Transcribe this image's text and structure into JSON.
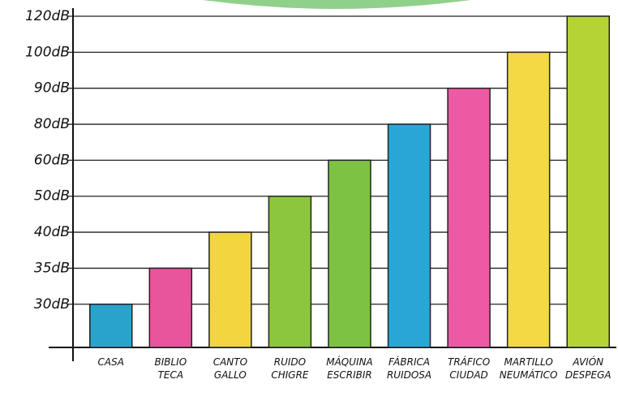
{
  "chart_data": {
    "type": "bar",
    "categories": [
      "CASA",
      "BIBLIO TECA",
      "CANTO GALLO",
      "RUIDO CHIGRE",
      "MÁQUINA ESCRIBIR",
      "FÁBRICA RUIDOSA",
      "TRÁFICO CIUDAD",
      "MARTILLO NEUMÁTICO",
      "AVIÓN DESPEGA"
    ],
    "values": [
      30,
      35,
      40,
      50,
      60,
      80,
      90,
      100,
      120
    ],
    "colors": [
      "#2aa3cc",
      "#e8559d",
      "#f2d53f",
      "#8cc63f",
      "#7dc243",
      "#2aa6d6",
      "#ec5aa3",
      "#f4d844",
      "#b6d336"
    ],
    "ylim": [
      24,
      120
    ],
    "yticks": [
      {
        "value": 30,
        "label": "30dB"
      },
      {
        "value": 35,
        "label": "35dB"
      },
      {
        "value": 40,
        "label": "40dB"
      },
      {
        "value": 50,
        "label": "50dB"
      },
      {
        "value": 60,
        "label": "60dB"
      },
      {
        "value": 80,
        "label": "80dB"
      },
      {
        "value": 90,
        "label": "90dB"
      },
      {
        "value": 100,
        "label": "100dB"
      },
      {
        "value": 120,
        "label": "120dB"
      }
    ],
    "grid": true
  }
}
